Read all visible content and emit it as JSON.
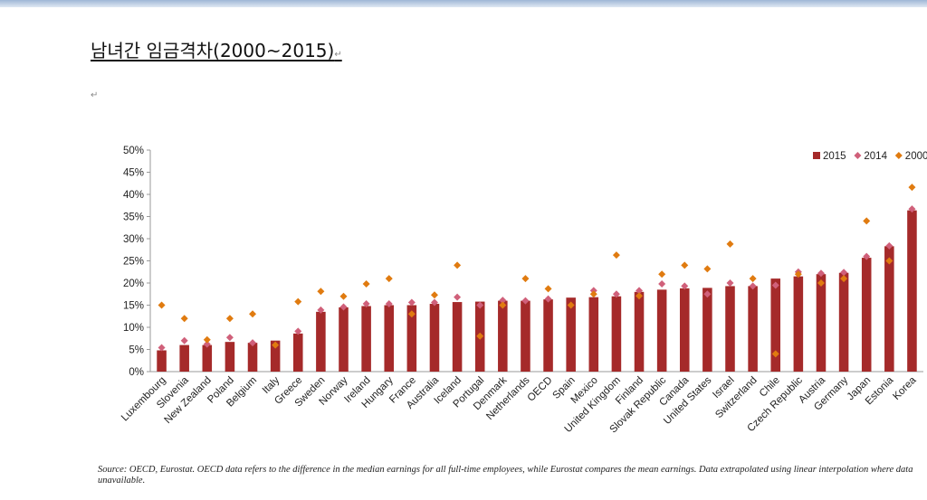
{
  "page": {
    "title": "남녀간 임금격차(2000~2015)",
    "paragraph_mark": "↵",
    "source_note": "Source: OECD, Eurostat. OECD data refers to the difference in the median earnings for all full-time employees, while Eurostat compares the mean earnings. Data extrapolated using linear interpolation where data unavailable."
  },
  "chart_data": {
    "type": "bar",
    "title": "",
    "xlabel": "",
    "ylabel": "",
    "ylim": [
      0,
      50
    ],
    "yticks": [
      "0%",
      "5%",
      "10%",
      "15%",
      "20%",
      "25%",
      "30%",
      "35%",
      "40%",
      "45%",
      "50%"
    ],
    "legend_position": "top-right",
    "categories": [
      "Luxembourg",
      "Slovenia",
      "New Zealand",
      "Poland",
      "Belgium",
      "Italy",
      "Greece",
      "Sweden",
      "Norway",
      "Ireland",
      "Hungary",
      "France",
      "Australia",
      "Iceland",
      "Portugal",
      "Denmark",
      "Netherlands",
      "OECD",
      "Spain",
      "Mexico",
      "United Kingdom",
      "Finland",
      "Slovak Republic",
      "Canada",
      "United States",
      "Israel",
      "Switzerland",
      "Chile",
      "Czech Republic",
      "Austria",
      "Germany",
      "Japan",
      "Estonia",
      "Korea"
    ],
    "series": [
      {
        "name": "2015",
        "marker": "bar",
        "color": "#a52a2a",
        "values": [
          4.8,
          6.0,
          6.0,
          6.7,
          6.5,
          7.0,
          8.6,
          13.5,
          14.5,
          14.8,
          15.0,
          15.0,
          15.3,
          15.7,
          15.8,
          16.0,
          16.0,
          16.3,
          16.7,
          16.8,
          17.0,
          18.0,
          18.5,
          18.8,
          18.9,
          19.3,
          19.3,
          21.0,
          21.5,
          22.0,
          22.3,
          25.7,
          28.3,
          36.4
        ]
      },
      {
        "name": "2014",
        "marker": "diamond",
        "color": "#d0607a",
        "values": [
          5.4,
          7.0,
          6.2,
          7.7,
          6.5,
          null,
          9.1,
          13.9,
          14.6,
          15.3,
          15.3,
          15.6,
          15.6,
          16.8,
          15.0,
          16.1,
          16.0,
          16.4,
          null,
          18.3,
          17.5,
          18.3,
          19.8,
          19.3,
          17.5,
          20.0,
          19.3,
          19.5,
          22.5,
          22.2,
          22.4,
          26.0,
          28.4,
          36.7
        ]
      },
      {
        "name": "2000",
        "marker": "diamond",
        "color": "#e07b10",
        "values": [
          15.0,
          12.0,
          7.2,
          12.0,
          13.0,
          6.0,
          15.8,
          18.1,
          17.0,
          19.8,
          21.0,
          13.0,
          17.3,
          24.0,
          8.0,
          15.0,
          21.0,
          18.7,
          15.0,
          17.5,
          26.3,
          17.1,
          22.0,
          24.0,
          23.2,
          28.8,
          21.0,
          4.0,
          22.0,
          20.0,
          21.0,
          34.0,
          25.0,
          41.6
        ]
      }
    ]
  }
}
